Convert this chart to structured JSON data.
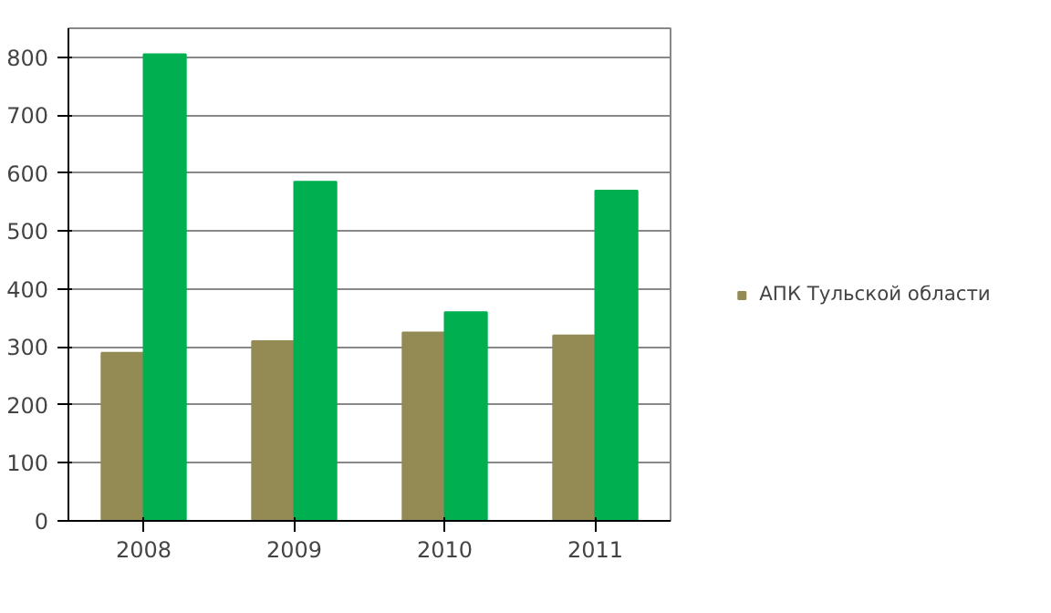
{
  "chart_data": {
    "type": "bar",
    "categories": [
      "2008",
      "2009",
      "2010",
      "2011"
    ],
    "series": [
      {
        "name": "АПК Тульской области",
        "color": "#948a54",
        "values": [
          290,
          310,
          325,
          320
        ]
      },
      {
        "color": "#00b050",
        "values": [
          805,
          585,
          360,
          570
        ]
      }
    ],
    "ylim": [
      0,
      850
    ],
    "yticks": [
      0,
      100,
      200,
      300,
      400,
      500,
      600,
      700,
      800
    ],
    "grid": "y",
    "legend": "right"
  }
}
